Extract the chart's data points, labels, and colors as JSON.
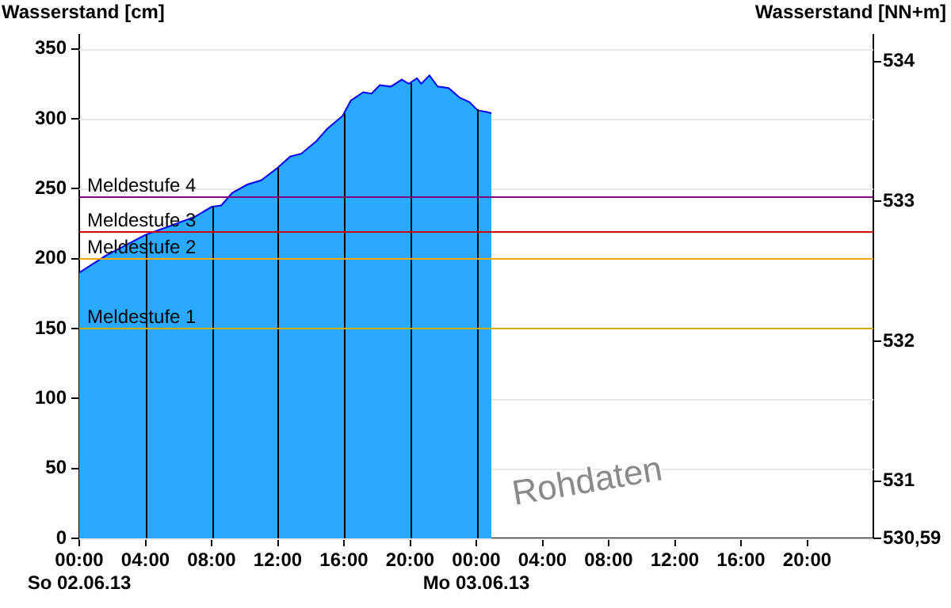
{
  "chart_data": {
    "type": "area",
    "ylabel": "Wasserstand [cm]",
    "y2label": "Wasserstand [NN+m]",
    "x": [
      "--06-02T00:00",
      "--06-02T01:35",
      "--06-02T04:00",
      "--06-02T05:25",
      "--06-02T07:00",
      "--06-02T08:00",
      "--06-02T08:35",
      "--06-02T09:15",
      "--06-02T10:10",
      "--06-02T11:00",
      "--06-02T12:00",
      "--06-02T12:45",
      "--06-02T13:25",
      "--06-02T14:20",
      "--06-02T15:00",
      "--06-02T15:55",
      "--06-02T16:25",
      "--06-02T17:10",
      "--06-02T17:40",
      "--06-02T18:10",
      "--06-02T18:50",
      "--06-02T19:30",
      "--06-02T19:55",
      "--06-02T20:25",
      "--06-02T20:40",
      "--06-02T21:10",
      "--06-02T21:40",
      "--06-02T22:20",
      "--06-02T23:00",
      "--06-02T23:35",
      "--06-03T00:05",
      "--06-03T00:35",
      "--06-03T00:55"
    ],
    "series": [
      {
        "color": "#29a9ff",
        "values": [
          190,
          202,
          217,
          223,
          230,
          237,
          238,
          247,
          253,
          256,
          265,
          273,
          275,
          284,
          293,
          302,
          313,
          319,
          318,
          324,
          323,
          328,
          325,
          329,
          325,
          331,
          323,
          322,
          315,
          312,
          306,
          305,
          304
        ]
      }
    ],
    "xlim": [
      "--06-02T00:00",
      "--06-04T00:00"
    ],
    "xticks": [
      {
        "value": "--06-02T00:00",
        "label": "00:00\nSo 02.06.13"
      },
      {
        "value": "--06-02T04:00",
        "label": "04:00"
      },
      {
        "value": "--06-02T08:00",
        "label": "08:00"
      },
      {
        "value": "--06-02T12:00",
        "label": "12:00"
      },
      {
        "value": "--06-02T16:00",
        "label": "16:00"
      },
      {
        "value": "--06-02T20:00",
        "label": "20:00"
      },
      {
        "value": "--06-03T00:00",
        "label": "00:00\nMo 03.06.13"
      },
      {
        "value": "--06-03T04:00",
        "label": "04:00"
      },
      {
        "value": "--06-03T08:00",
        "label": "08:00"
      },
      {
        "value": "--06-03T12:00",
        "label": "12:00"
      },
      {
        "value": "--06-03T16:00",
        "label": "16:00"
      },
      {
        "value": "--06-03T20:00",
        "label": "20:00"
      }
    ],
    "ylim": [
      0,
      360
    ],
    "yticks": [
      0,
      50,
      100,
      150,
      200,
      250,
      300,
      350
    ],
    "y2lim": [
      530.59,
      534.19
    ],
    "y2ticks": [
      {
        "value": 530.59,
        "label": "530,59"
      },
      531,
      532,
      533,
      534
    ],
    "ref_lines": [
      {
        "axis": "y",
        "value": 245,
        "label": "Meldestufe 4",
        "color": "#800080"
      },
      {
        "axis": "y",
        "value": 220,
        "label": "Meldestufe 3",
        "color": "#cc0000"
      },
      {
        "axis": "y",
        "value": 200,
        "label": "Meldestufe 2",
        "color": "#ffa500"
      },
      {
        "axis": "y",
        "value": 150,
        "label": "Meldestufe 1",
        "color": "#ccaa00"
      }
    ],
    "annotations": [
      "Rohdaten"
    ],
    "grid": true,
    "legend": false
  }
}
